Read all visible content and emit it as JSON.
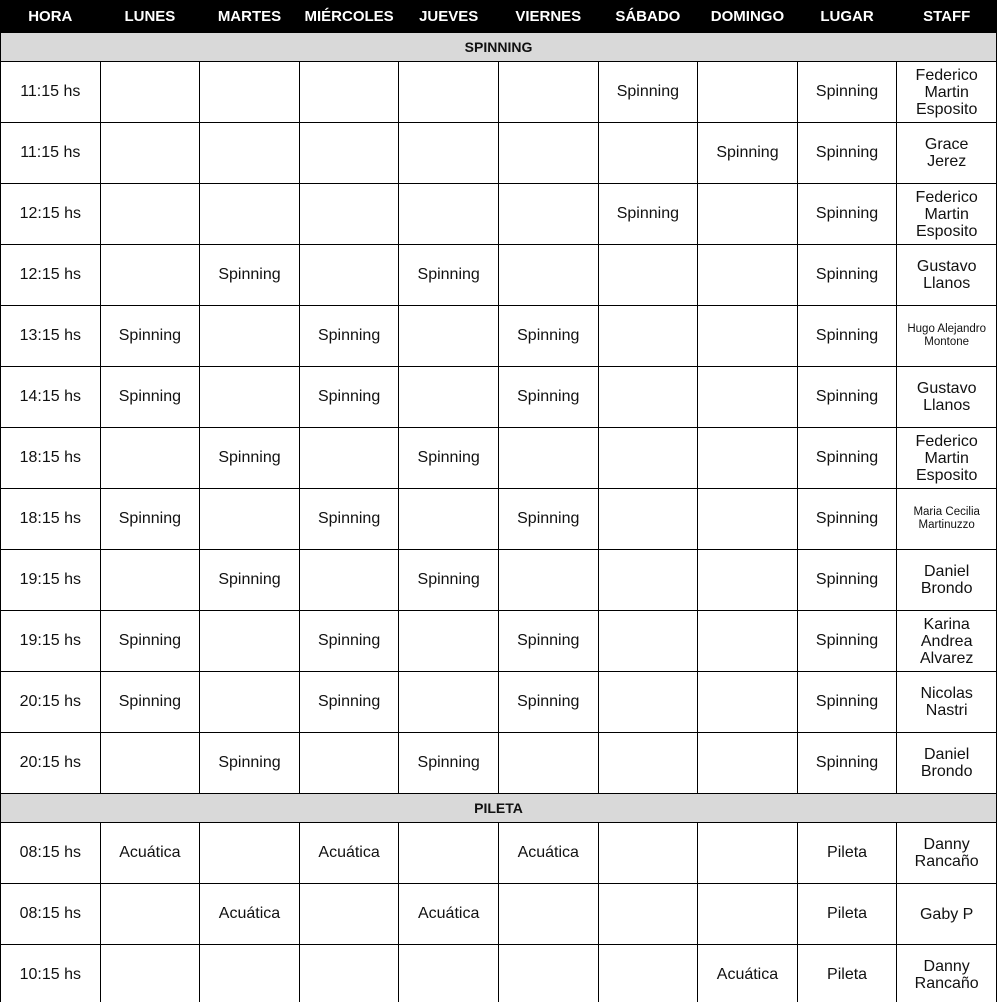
{
  "columns": [
    "HORA",
    "LUNES",
    "MARTES",
    "MIÉRCOLES",
    "JUEVES",
    "VIERNES",
    "SÁBADO",
    "DOMINGO",
    "LUGAR",
    "STAFF"
  ],
  "sections": [
    {
      "title": "SPINNING",
      "rows": [
        {
          "hora": "11:15 hs",
          "days": [
            null,
            null,
            null,
            null,
            null,
            "Spinning",
            null
          ],
          "lugar": "Spinning",
          "staff": [
            "Federico",
            "Martin",
            "Esposito"
          ]
        },
        {
          "hora": "11:15 hs",
          "days": [
            null,
            null,
            null,
            null,
            null,
            null,
            "Spinning"
          ],
          "lugar": "Spinning",
          "staff": [
            "Grace",
            "Jerez"
          ]
        },
        {
          "hora": "12:15 hs",
          "days": [
            null,
            null,
            null,
            null,
            null,
            "Spinning",
            null
          ],
          "lugar": "Spinning",
          "staff": [
            "Federico",
            "Martin",
            "Esposito"
          ]
        },
        {
          "hora": "12:15 hs",
          "days": [
            null,
            "Spinning",
            null,
            "Spinning",
            null,
            null,
            null
          ],
          "lugar": "Spinning",
          "staff": [
            "Gustavo",
            "Llanos"
          ]
        },
        {
          "hora": "13:15 hs",
          "days": [
            "Spinning",
            null,
            "Spinning",
            null,
            "Spinning",
            null,
            null
          ],
          "lugar": "Spinning",
          "staff": [
            "Hugo Alejandro",
            "Montone"
          ]
        },
        {
          "hora": "14:15 hs",
          "days": [
            "Spinning",
            null,
            "Spinning",
            null,
            "Spinning",
            null,
            null
          ],
          "lugar": "Spinning",
          "staff": [
            "Gustavo",
            "Llanos"
          ]
        },
        {
          "hora": "18:15 hs",
          "days": [
            null,
            "Spinning",
            null,
            "Spinning",
            null,
            null,
            null
          ],
          "lugar": "Spinning",
          "staff": [
            "Federico",
            "Martin",
            "Esposito"
          ]
        },
        {
          "hora": "18:15 hs",
          "days": [
            "Spinning",
            null,
            "Spinning",
            null,
            "Spinning",
            null,
            null
          ],
          "lugar": "Spinning",
          "staff": [
            "Maria Cecilia",
            "Martinuzzo"
          ]
        },
        {
          "hora": "19:15 hs",
          "days": [
            null,
            "Spinning",
            null,
            "Spinning",
            null,
            null,
            null
          ],
          "lugar": "Spinning",
          "staff": [
            "Daniel",
            "Brondo"
          ]
        },
        {
          "hora": "19:15 hs",
          "days": [
            "Spinning",
            null,
            "Spinning",
            null,
            "Spinning",
            null,
            null
          ],
          "lugar": "Spinning",
          "staff": [
            "Karina",
            "Andrea",
            "Alvarez"
          ]
        },
        {
          "hora": "20:15 hs",
          "days": [
            "Spinning",
            null,
            "Spinning",
            null,
            "Spinning",
            null,
            null
          ],
          "lugar": "Spinning",
          "staff": [
            "Nicolas",
            "Nastri"
          ]
        },
        {
          "hora": "20:15 hs",
          "days": [
            null,
            "Spinning",
            null,
            "Spinning",
            null,
            null,
            null
          ],
          "lugar": "Spinning",
          "staff": [
            "Daniel",
            "Brondo"
          ]
        }
      ]
    },
    {
      "title": "PILETA",
      "rows": [
        {
          "hora": "08:15 hs",
          "days": [
            "Acuática",
            null,
            "Acuática",
            null,
            "Acuática",
            null,
            null
          ],
          "lugar": "Pileta",
          "staff": [
            "Danny",
            "Rancaño"
          ]
        },
        {
          "hora": "08:15 hs",
          "days": [
            null,
            "Acuática",
            null,
            "Acuática",
            null,
            null,
            null
          ],
          "lugar": "Pileta",
          "staff": [
            "Gaby P"
          ]
        },
        {
          "hora": "10:15 hs",
          "days": [
            null,
            null,
            null,
            null,
            null,
            null,
            "Acuática"
          ],
          "lugar": "Pileta",
          "staff": [
            "Danny",
            "Rancaño"
          ]
        }
      ]
    }
  ]
}
